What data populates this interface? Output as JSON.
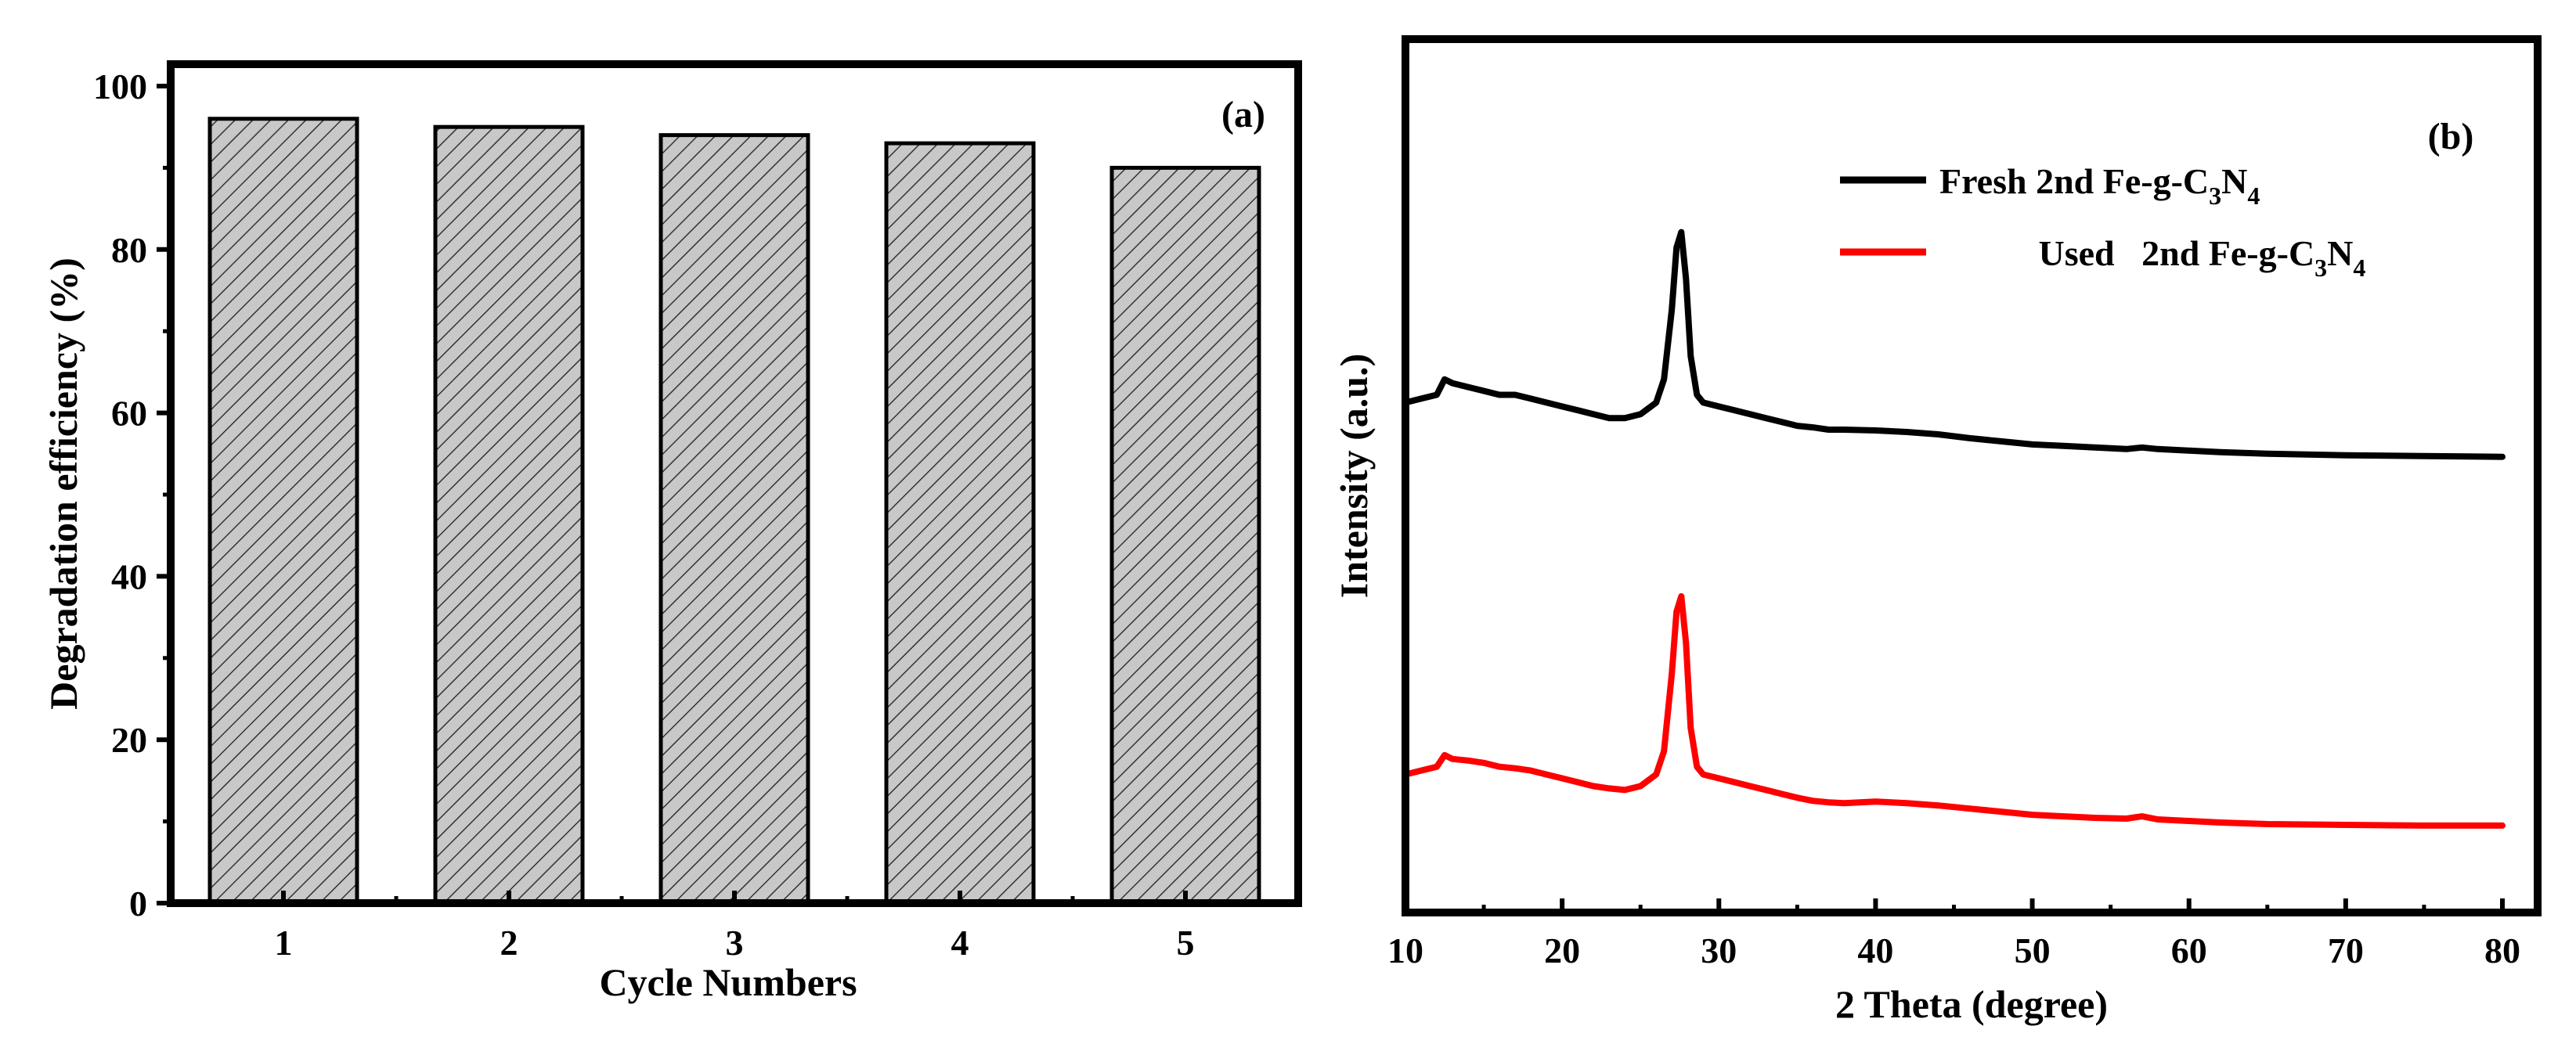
{
  "chart_data": [
    {
      "type": "bar",
      "panel_label": "(a)",
      "categories": [
        "1",
        "2",
        "3",
        "4",
        "5"
      ],
      "values": [
        96,
        95,
        94,
        93,
        90
      ],
      "xlabel": "Cycle Numbers",
      "ylabel": "Degradation efficiency (%)",
      "ylim": [
        0,
        100
      ],
      "yticks": [
        "0",
        "20",
        "40",
        "60",
        "80",
        "100"
      ],
      "bar_fill": "hatched-gray",
      "grid": false
    },
    {
      "type": "line",
      "panel_label": "(b)",
      "xlabel": "2 Theta (degree)",
      "ylabel": "Intensity (a.u.)",
      "xlim": [
        10,
        80
      ],
      "xticks": [
        "10",
        "20",
        "30",
        "40",
        "50",
        "60",
        "70",
        "80"
      ],
      "legend_position": "top-center",
      "series": [
        {
          "name": "Fresh 2nd Fe-g-C3N4",
          "legend_text": {
            "pre": "Fresh 2nd Fe-g-C",
            "sub1": "3",
            "mid": "N",
            "sub2": "4"
          },
          "color": "#000000",
          "x": [
            10,
            11,
            12,
            12.5,
            13,
            14,
            15,
            16,
            17,
            18,
            19,
            20,
            21,
            22,
            23,
            24,
            25,
            26,
            26.5,
            27,
            27.3,
            27.6,
            27.9,
            28.2,
            28.6,
            29,
            30,
            31,
            32,
            33,
            34,
            35,
            36,
            37,
            38,
            40,
            42,
            44,
            46,
            48,
            50,
            52,
            54,
            56,
            57,
            58,
            60,
            62,
            65,
            70,
            75,
            80
          ],
          "y": [
            64,
            64.5,
            65,
            67,
            66.5,
            66,
            65.5,
            65,
            65,
            64.5,
            64,
            63.5,
            63,
            62.5,
            62,
            62,
            62.5,
            64,
            67,
            76,
            84,
            86,
            80,
            70,
            65,
            64,
            63.5,
            63,
            62.5,
            62,
            61.5,
            61,
            60.8,
            60.5,
            60.5,
            60.4,
            60.2,
            59.9,
            59.4,
            59,
            58.6,
            58.4,
            58.2,
            58,
            58.2,
            58,
            57.8,
            57.6,
            57.4,
            57.2,
            57.1,
            57
          ]
        },
        {
          "name": "Used 2nd Fe-g-C3N4",
          "legend_text": {
            "pre": "Used   2nd Fe-g-C",
            "sub1": "3",
            "mid": "N",
            "sub2": "4"
          },
          "color": "#ff0000",
          "x": [
            10,
            11,
            12,
            12.5,
            13,
            14,
            15,
            16,
            17,
            18,
            19,
            20,
            21,
            22,
            23,
            24,
            25,
            26,
            26.5,
            27,
            27.3,
            27.6,
            27.9,
            28.2,
            28.6,
            29,
            30,
            31,
            32,
            33,
            34,
            35,
            36,
            37,
            38,
            40,
            42,
            44,
            46,
            48,
            50,
            52,
            54,
            56,
            57,
            58,
            60,
            62,
            65,
            70,
            75,
            80
          ],
          "y": [
            16,
            16.5,
            17,
            18.5,
            18,
            17.8,
            17.5,
            17,
            16.8,
            16.5,
            16,
            15.5,
            15,
            14.5,
            14.2,
            14,
            14.5,
            16,
            19,
            29,
            37,
            39,
            33,
            22,
            17,
            16,
            15.5,
            15,
            14.5,
            14,
            13.5,
            13,
            12.6,
            12.4,
            12.3,
            12.5,
            12.3,
            12,
            11.6,
            11.2,
            10.8,
            10.6,
            10.4,
            10.3,
            10.6,
            10.2,
            10,
            9.8,
            9.6,
            9.5,
            9.4,
            9.4
          ]
        }
      ]
    }
  ]
}
